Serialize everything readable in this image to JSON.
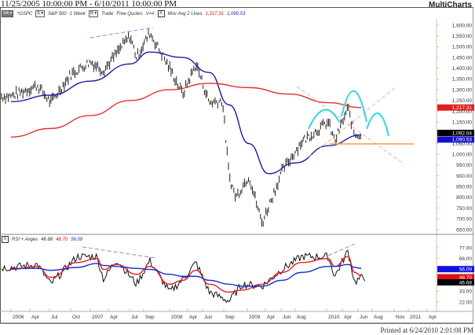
{
  "window": {
    "title": "11/25/2005 10:00:00 PM - 6/10/2011 10:00:00 PM",
    "brand": "MultiCharts"
  },
  "toolbar": {
    "symbol_box": "SA",
    "symbol": "^GSPC",
    "exchange_box": "S",
    "name": "S&P 500",
    "interval": "1 Week",
    "data_box": "R",
    "quote_type": "Trade",
    "quote_feed": "Free Quotes",
    "volume_flag": "V=#",
    "study_close": "X",
    "study_name": "Mov Avg 2 Lines",
    "study_val1": "1,217.31",
    "study_val2": "1,090.53"
  },
  "rsi_panel": {
    "close": "X",
    "name": "RSI + Avges",
    "val_rsi": "46.68",
    "val_avg1": "48.70",
    "val_avg2": "56.09"
  },
  "footer": {
    "printed": "Printed at 6/24/2010 2:01:08 PM"
  },
  "colors": {
    "ma_long": "#e03030",
    "ma_short": "#1a1aa0",
    "rsi": "#000000",
    "rsi_avg1": "#e02020",
    "rsi_avg2": "#1a2ad0",
    "pattern": "#33d6e0",
    "support": "#f0a040",
    "trend_dash": "#8888dd",
    "fan_dash": "#e8a0a0"
  },
  "chart_data": [
    {
      "type": "line",
      "title": "^GSPC S&P 500 1 Week — Mov Avg 2 Lines",
      "ylabel": "Price",
      "ylim": [
        650,
        1600
      ],
      "y_ticks": [
        "1,600.00",
        "1,550.00",
        "1,500.00",
        "1,450.00",
        "1,400.00",
        "1,350.00",
        "1,300.00",
        "1,250.00",
        "1,200.00",
        "1,150.00",
        "1,100.00",
        "1,050.00",
        "1,000.00",
        "950.00",
        "900.00",
        "850.00",
        "800.00",
        "750.00",
        "700.00",
        "650.00"
      ],
      "last_value_labels": [
        {
          "value": "1,217.31",
          "series": "MA long",
          "color": "#e02020"
        },
        {
          "value": "1,092.04",
          "series": "Price",
          "color": "#000000"
        },
        {
          "value": "1,090.53",
          "series": "MA short",
          "color": "#1010d0"
        }
      ],
      "x_ticks": [
        "2006",
        "Apr",
        "Jul",
        "Oct",
        "2007",
        "Apr",
        "Jul",
        "Sep",
        "2008",
        "Apr",
        "Jun",
        "Sep",
        "2009",
        "Apr",
        "Jun",
        "Aug",
        "2010",
        "Apr",
        "Jun",
        "Aug",
        "Nov",
        "2011",
        "Apr"
      ],
      "series": [
        {
          "name": "Price (weekly bars)",
          "x": [
            "2006-01",
            "2006-05",
            "2006-07",
            "2006-10",
            "2007-01",
            "2007-03",
            "2007-07",
            "2007-08",
            "2007-10",
            "2008-01",
            "2008-03",
            "2008-05",
            "2008-07",
            "2008-09",
            "2008-10",
            "2008-11",
            "2009-01",
            "2009-03",
            "2009-06",
            "2009-09",
            "2010-01",
            "2010-02",
            "2010-04",
            "2010-05",
            "2010-06"
          ],
          "values": [
            1270,
            1320,
            1240,
            1370,
            1430,
            1390,
            1550,
            1450,
            1565,
            1400,
            1280,
            1420,
            1240,
            1250,
            900,
            800,
            900,
            680,
            920,
            1060,
            1150,
            1060,
            1215,
            1090,
            1092
          ]
        },
        {
          "name": "MA short (blue)",
          "x": [
            "2006-01",
            "2006-07",
            "2007-01",
            "2007-07",
            "2007-10",
            "2008-03",
            "2008-07",
            "2008-10",
            "2009-01",
            "2009-04",
            "2009-08",
            "2010-01",
            "2010-06"
          ],
          "values": [
            1245,
            1275,
            1340,
            1420,
            1475,
            1450,
            1380,
            1230,
            1050,
            910,
            960,
            1040,
            1090
          ]
        },
        {
          "name": "MA long (red)",
          "x": [
            "2006-01",
            "2006-07",
            "2007-01",
            "2007-07",
            "2008-01",
            "2008-07",
            "2009-01",
            "2009-07",
            "2010-01",
            "2010-06"
          ],
          "values": [
            1080,
            1120,
            1180,
            1250,
            1300,
            1330,
            1310,
            1280,
            1240,
            1217
          ]
        }
      ]
    },
    {
      "type": "line",
      "title": "RSI + Avges",
      "ylim": [
        22,
        77
      ],
      "y_ticks": [
        "77.00",
        "66.00",
        "55.00",
        "44.00",
        "33.00",
        "22.00"
      ],
      "last_value_labels": [
        {
          "value": "56.09",
          "series": "Avg 2",
          "color": "#1010e0"
        },
        {
          "value": "48.70",
          "series": "Avg 1",
          "color": "#e01010"
        },
        {
          "value": "46.68",
          "series": "RSI",
          "color": "#000000"
        }
      ],
      "series": [
        {
          "name": "RSI",
          "x": [
            "2006-01",
            "2006-05",
            "2006-07",
            "2006-11",
            "2007-02",
            "2007-03",
            "2007-05",
            "2007-08",
            "2007-10",
            "2008-01",
            "2008-03",
            "2008-05",
            "2008-07",
            "2008-10",
            "2008-12",
            "2009-03",
            "2009-06",
            "2009-09",
            "2010-01",
            "2010-02",
            "2010-04",
            "2010-05",
            "2010-06"
          ],
          "values": [
            57,
            60,
            40,
            68,
            68,
            45,
            65,
            40,
            64,
            32,
            45,
            62,
            32,
            23,
            40,
            38,
            55,
            68,
            68,
            48,
            74,
            42,
            46.68
          ]
        },
        {
          "name": "Avg 1 (red)",
          "values": [
            55,
            58,
            47,
            62,
            66,
            55,
            60,
            50,
            58,
            40,
            44,
            54,
            40,
            32,
            34,
            40,
            52,
            62,
            66,
            58,
            68,
            52,
            48.7
          ]
        },
        {
          "name": "Avg 2 (blue)",
          "values": [
            56,
            56,
            54,
            57,
            61,
            59,
            58,
            56,
            55,
            50,
            48,
            48,
            44,
            40,
            38,
            38,
            44,
            52,
            58,
            58,
            60,
            57,
            56.09
          ]
        }
      ]
    }
  ]
}
